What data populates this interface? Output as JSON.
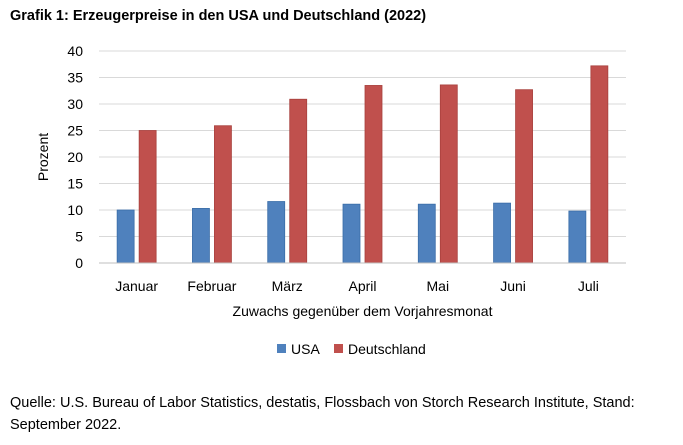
{
  "title": "Grafik 1: Erzeugerpreise in den USA und Deutschland (2022)",
  "source": "Quelle: U.S. Bureau of Labor Statistics, destatis, Flossbach von Storch Research Institute, Stand: September 2022.",
  "colors": {
    "usa": "#4F81BD",
    "deutschland": "#C0504D",
    "grid": "#D9D9D9",
    "axis": "#BFBFBF"
  },
  "chart_data": {
    "type": "bar",
    "title": "Grafik 1: Erzeugerpreise in den USA und Deutschland (2022)",
    "xlabel": "Zuwachs gegenüber dem Vorjahresmonat",
    "ylabel": "Prozent",
    "ylim": [
      0,
      40
    ],
    "yticks": [
      0,
      5,
      10,
      15,
      20,
      25,
      30,
      35,
      40
    ],
    "grid": true,
    "legend": "bottom",
    "categories": [
      "Januar",
      "Februar",
      "März",
      "April",
      "Mai",
      "Juni",
      "Juli"
    ],
    "series": [
      {
        "name": "USA",
        "values": [
          10.0,
          10.3,
          11.6,
          11.1,
          11.1,
          11.3,
          9.8
        ]
      },
      {
        "name": "Deutschland",
        "values": [
          25.0,
          25.9,
          30.9,
          33.5,
          33.6,
          32.7,
          37.2
        ]
      }
    ]
  }
}
